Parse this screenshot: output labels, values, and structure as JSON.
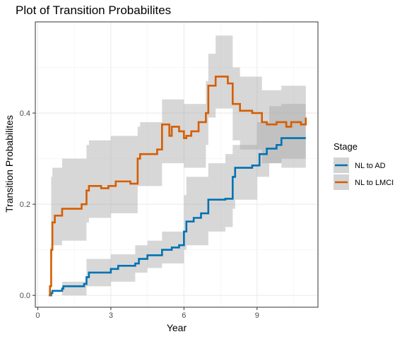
{
  "chart_data": {
    "type": "line",
    "title": "Plot of Transition Probabilites",
    "xlabel": "Year",
    "ylabel": "Transition Probabilites",
    "xlim": [
      -0.1,
      11.5
    ],
    "ylim": [
      -0.026,
      0.6
    ],
    "x_ticks": [
      0,
      3,
      6,
      9
    ],
    "x_tick_labels": [
      "0",
      "3",
      "6",
      "9"
    ],
    "y_ticks": [
      0.0,
      0.2,
      0.4
    ],
    "y_tick_labels": [
      "0.0",
      "0.2",
      "0.4"
    ],
    "grid": true,
    "legend": {
      "title": "Stage",
      "position": "right"
    },
    "series": [
      {
        "name": "NL to AD",
        "color": "#0072B2",
        "step": true,
        "points": [
          [
            0.45,
            0.0
          ],
          [
            0.55,
            0.005
          ],
          [
            0.6,
            0.01
          ],
          [
            1.0,
            0.015
          ],
          [
            1.05,
            0.02
          ],
          [
            1.9,
            0.025
          ],
          [
            2.0,
            0.04
          ],
          [
            2.1,
            0.05
          ],
          [
            3.0,
            0.058
          ],
          [
            3.3,
            0.065
          ],
          [
            4.0,
            0.07
          ],
          [
            4.15,
            0.08
          ],
          [
            4.5,
            0.088
          ],
          [
            5.1,
            0.1
          ],
          [
            5.5,
            0.105
          ],
          [
            5.8,
            0.11
          ],
          [
            6.0,
            0.14
          ],
          [
            6.1,
            0.162
          ],
          [
            6.4,
            0.17
          ],
          [
            6.7,
            0.18
          ],
          [
            7.0,
            0.21
          ],
          [
            7.7,
            0.212
          ],
          [
            8.0,
            0.26
          ],
          [
            8.1,
            0.28
          ],
          [
            8.8,
            0.285
          ],
          [
            9.1,
            0.31
          ],
          [
            9.4,
            0.322
          ],
          [
            9.8,
            0.33
          ],
          [
            10.0,
            0.345
          ],
          [
            11.0,
            0.345
          ]
        ],
        "band": [
          [
            0.45,
            0.0,
            0.0
          ],
          [
            1.0,
            0.0,
            0.03
          ],
          [
            2.0,
            0.02,
            0.08
          ],
          [
            3.0,
            0.03,
            0.09
          ],
          [
            4.0,
            0.05,
            0.11
          ],
          [
            4.5,
            0.06,
            0.12
          ],
          [
            5.1,
            0.07,
            0.14
          ],
          [
            6.0,
            0.1,
            0.22
          ],
          [
            6.1,
            0.11,
            0.26
          ],
          [
            7.0,
            0.14,
            0.29
          ],
          [
            7.7,
            0.15,
            0.31
          ],
          [
            8.0,
            0.19,
            0.33
          ],
          [
            8.1,
            0.21,
            0.33
          ],
          [
            9.0,
            0.26,
            0.38
          ],
          [
            9.5,
            0.29,
            0.415
          ],
          [
            10.0,
            0.3,
            0.42
          ],
          [
            11.0,
            0.3,
            0.42
          ]
        ]
      },
      {
        "name": "NL to LMCI",
        "color": "#D55E00",
        "step": true,
        "points": [
          [
            0.45,
            0.0
          ],
          [
            0.5,
            0.02
          ],
          [
            0.55,
            0.1
          ],
          [
            0.6,
            0.16
          ],
          [
            0.7,
            0.175
          ],
          [
            1.0,
            0.19
          ],
          [
            1.3,
            0.19
          ],
          [
            1.8,
            0.2
          ],
          [
            2.0,
            0.23
          ],
          [
            2.1,
            0.24
          ],
          [
            2.6,
            0.235
          ],
          [
            2.9,
            0.24
          ],
          [
            3.2,
            0.25
          ],
          [
            3.8,
            0.245
          ],
          [
            4.1,
            0.3
          ],
          [
            4.2,
            0.31
          ],
          [
            4.9,
            0.32
          ],
          [
            5.1,
            0.375
          ],
          [
            5.4,
            0.35
          ],
          [
            5.5,
            0.37
          ],
          [
            5.8,
            0.36
          ],
          [
            6.0,
            0.345
          ],
          [
            6.1,
            0.35
          ],
          [
            6.3,
            0.36
          ],
          [
            6.6,
            0.38
          ],
          [
            6.9,
            0.4
          ],
          [
            7.0,
            0.46
          ],
          [
            7.3,
            0.48
          ],
          [
            7.8,
            0.465
          ],
          [
            8.0,
            0.42
          ],
          [
            8.3,
            0.405
          ],
          [
            8.8,
            0.4
          ],
          [
            9.2,
            0.38
          ],
          [
            9.4,
            0.375
          ],
          [
            9.8,
            0.38
          ],
          [
            10.2,
            0.37
          ],
          [
            10.4,
            0.38
          ],
          [
            10.8,
            0.375
          ],
          [
            11.0,
            0.39
          ]
        ],
        "band": [
          [
            0.45,
            0.0,
            0.0
          ],
          [
            0.55,
            0.08,
            0.26
          ],
          [
            0.6,
            0.11,
            0.28
          ],
          [
            1.0,
            0.12,
            0.3
          ],
          [
            2.0,
            0.16,
            0.33
          ],
          [
            2.1,
            0.17,
            0.34
          ],
          [
            3.0,
            0.18,
            0.35
          ],
          [
            4.1,
            0.24,
            0.37
          ],
          [
            4.2,
            0.24,
            0.38
          ],
          [
            5.1,
            0.29,
            0.43
          ],
          [
            6.0,
            0.28,
            0.42
          ],
          [
            6.9,
            0.33,
            0.47
          ],
          [
            7.0,
            0.39,
            0.53
          ],
          [
            7.3,
            0.41,
            0.57
          ],
          [
            8.0,
            0.34,
            0.5
          ],
          [
            8.3,
            0.32,
            0.48
          ],
          [
            9.2,
            0.29,
            0.45
          ],
          [
            10.0,
            0.28,
            0.46
          ],
          [
            11.0,
            0.27,
            0.48
          ]
        ]
      }
    ]
  }
}
